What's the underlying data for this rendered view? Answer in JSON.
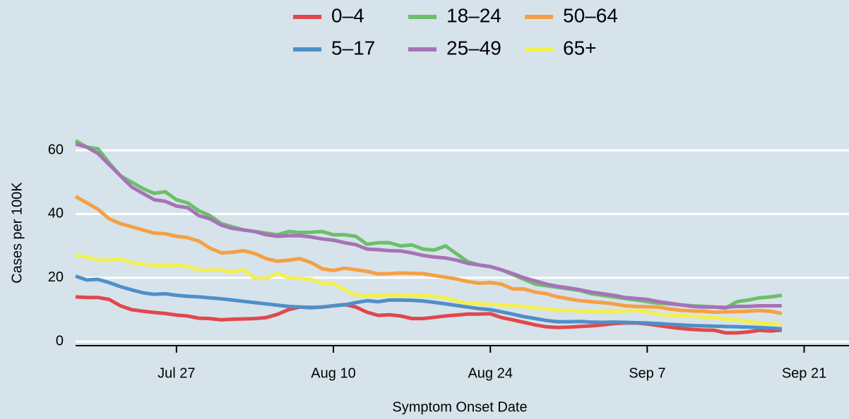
{
  "chart_data": {
    "type": "line",
    "xlabel": "Symptom Onset Date",
    "ylabel": "Cases per 100K",
    "x": [
      "Jul 18",
      "Jul 19",
      "Jul 20",
      "Jul 21",
      "Jul 22",
      "Jul 23",
      "Jul 24",
      "Jul 25",
      "Jul 26",
      "Jul 27",
      "Jul 28",
      "Jul 29",
      "Jul 30",
      "Jul 31",
      "Aug 1",
      "Aug 2",
      "Aug 3",
      "Aug 4",
      "Aug 5",
      "Aug 6",
      "Aug 7",
      "Aug 8",
      "Aug 9",
      "Aug 10",
      "Aug 11",
      "Aug 12",
      "Aug 13",
      "Aug 14",
      "Aug 15",
      "Aug 16",
      "Aug 17",
      "Aug 18",
      "Aug 19",
      "Aug 20",
      "Aug 21",
      "Aug 22",
      "Aug 23",
      "Aug 24",
      "Aug 25",
      "Aug 26",
      "Aug 27",
      "Aug 28",
      "Aug 29",
      "Aug 30",
      "Aug 31",
      "Sep 1",
      "Sep 2",
      "Sep 3",
      "Sep 4",
      "Sep 5",
      "Sep 6",
      "Sep 7",
      "Sep 8",
      "Sep 9",
      "Sep 10",
      "Sep 11",
      "Sep 12",
      "Sep 13",
      "Sep 14",
      "Sep 15",
      "Sep 16",
      "Sep 17",
      "Sep 18",
      "Sep 19"
    ],
    "xlim": [
      "Jul 18",
      "Sep 25"
    ],
    "xticks": [
      "Jul 27",
      "Aug 10",
      "Aug 24",
      "Sep 7",
      "Sep 21"
    ],
    "ylim": [
      -1.3,
      64
    ],
    "yticks": [
      0,
      20,
      40,
      60
    ],
    "grid": true,
    "legend": "top",
    "series": [
      {
        "name": "0–4",
        "color": "#e0484c",
        "values": [
          14,
          13.8,
          13.8,
          13.2,
          11.2,
          10,
          9.5,
          9.1,
          8.8,
          8.3,
          8,
          7.3,
          7.2,
          6.8,
          7,
          7.1,
          7.2,
          7.5,
          8.5,
          10,
          10.8,
          10.6,
          10.8,
          11.2,
          11.6,
          10.8,
          9.2,
          8.2,
          8.4,
          8,
          7.2,
          7.2,
          7.6,
          8,
          8.3,
          8.6,
          8.6,
          8.7,
          7.5,
          6.8,
          6,
          5.2,
          4.6,
          4.4,
          4.5,
          4.7,
          4.9,
          5.2,
          5.6,
          5.8,
          5.8,
          5.5,
          5,
          4.5,
          4.1,
          3.8,
          3.6,
          3.5,
          2.7,
          2.7,
          3,
          3.5,
          3.3,
          3.6
        ]
      },
      {
        "name": "5–17",
        "color": "#4f8fc8",
        "values": [
          20.5,
          19.3,
          19.5,
          18.5,
          17.2,
          16.2,
          15.3,
          14.8,
          15,
          14.5,
          14.2,
          14,
          13.7,
          13.4,
          13,
          12.6,
          12.2,
          11.8,
          11.4,
          11,
          10.8,
          10.7,
          10.8,
          11.2,
          11.5,
          12.2,
          12.8,
          12.5,
          13,
          13,
          12.9,
          12.7,
          12.3,
          11.8,
          11.3,
          10.8,
          10.3,
          10,
          9.3,
          8.6,
          7.8,
          7.2,
          6.6,
          6.2,
          6.2,
          6.3,
          6.1,
          6,
          6.1,
          6,
          5.9,
          5.8,
          5.6,
          5.4,
          5.2,
          5,
          4.9,
          4.8,
          4.7,
          4.6,
          4.5,
          4.4,
          4.2,
          4.0
        ]
      },
      {
        "name": "18–24",
        "color": "#6cbf6a",
        "values": [
          63,
          61,
          60.5,
          56,
          52,
          50,
          48,
          46.5,
          47,
          44.5,
          43.5,
          41,
          39.5,
          37,
          36,
          35,
          34.5,
          34,
          33.5,
          34.5,
          34.2,
          34.3,
          34.5,
          33.5,
          33.5,
          33,
          30.5,
          31,
          31,
          30,
          30.3,
          29,
          28.7,
          30,
          27.5,
          25,
          24,
          23.5,
          22.5,
          21,
          19.5,
          18,
          17.5,
          17,
          16.5,
          16,
          15,
          14.5,
          14,
          13.5,
          13,
          12.5,
          12,
          11.8,
          11.5,
          11.2,
          11,
          10.8,
          10.5,
          12.5,
          13,
          13.7,
          14,
          14.5
        ]
      },
      {
        "name": "25–49",
        "color": "#a673b6",
        "values": [
          62,
          61,
          59,
          55.5,
          52,
          48.5,
          46.5,
          44.5,
          44,
          42.5,
          42,
          39.5,
          38.5,
          36.5,
          35.5,
          35,
          34.5,
          33.5,
          33,
          33.2,
          33.2,
          32.8,
          32.2,
          31.8,
          31,
          30.4,
          29,
          28.8,
          28.5,
          28.4,
          27.8,
          27,
          26.5,
          26.2,
          25.5,
          24.5,
          24,
          23.5,
          22.5,
          21.3,
          20,
          19,
          18,
          17.3,
          16.8,
          16.2,
          15.5,
          15,
          14.5,
          13.8,
          13.5,
          13.2,
          12.5,
          12,
          11.5,
          11,
          10.8,
          10.8,
          10.7,
          11,
          11,
          11.2,
          11.2,
          11.2
        ]
      },
      {
        "name": "50–64",
        "color": "#f5a043",
        "values": [
          45.5,
          43.5,
          41.5,
          38.5,
          37,
          36,
          35,
          34,
          33.8,
          33,
          32.6,
          31.5,
          29.3,
          27.8,
          28,
          28.5,
          27.6,
          26,
          25.2,
          25.5,
          26,
          24.8,
          22.8,
          22.3,
          23,
          22.5,
          22,
          21.2,
          21.3,
          21.5,
          21.4,
          21.3,
          20.7,
          20.2,
          19.6,
          18.8,
          18.3,
          18.5,
          18,
          16.5,
          16.5,
          15.5,
          15,
          14,
          13.4,
          12.8,
          12.5,
          12.2,
          11.8,
          11.2,
          11,
          10.9,
          10.8,
          10.2,
          9.8,
          9.6,
          9.5,
          9.2,
          9.3,
          9.4,
          9.5,
          9.7,
          9.5,
          8.8
        ]
      },
      {
        "name": "65+",
        "color": "#f2f04e",
        "values": [
          27,
          26.5,
          25.5,
          25.5,
          25.8,
          24.8,
          24.3,
          23.8,
          23.8,
          24,
          23.6,
          22.3,
          22.4,
          22.4,
          21.8,
          22.5,
          19.8,
          19.8,
          21.4,
          20,
          19.8,
          19.5,
          18.3,
          18,
          16.3,
          14.5,
          14.4,
          14.5,
          14.6,
          14.4,
          14.4,
          14.5,
          14.2,
          13.8,
          12.7,
          12,
          11.8,
          11.7,
          11.5,
          11.2,
          11,
          10.5,
          10.3,
          9.8,
          9.8,
          9.6,
          9.5,
          9.5,
          9.5,
          9.6,
          9.8,
          9.3,
          8.5,
          8.3,
          8.1,
          7.9,
          7.7,
          7.5,
          7,
          6.8,
          6.3,
          5.8,
          5.5,
          5.4
        ]
      }
    ]
  }
}
